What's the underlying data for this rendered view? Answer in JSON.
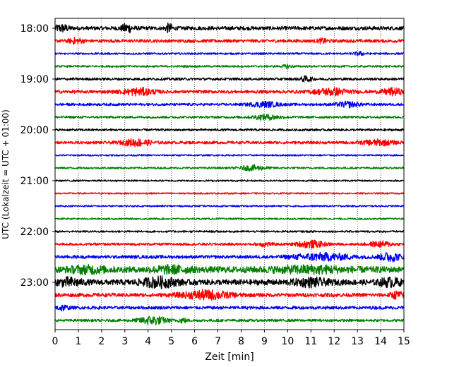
{
  "chart_data": {
    "type": "line",
    "title": "",
    "xlabel": "Zeit  [min]",
    "ylabel": "UTC (Lokalzeit = UTC + 01:00)",
    "xlim": [
      0,
      15
    ],
    "x_ticks": [
      0,
      1,
      2,
      3,
      4,
      5,
      6,
      7,
      8,
      9,
      10,
      11,
      12,
      13,
      14,
      15
    ],
    "y_tick_labels": [
      "18:00",
      "19:00",
      "20:00",
      "21:00",
      "22:00",
      "23:00"
    ],
    "trace_interval_min": 15,
    "start_time": "18:00",
    "grid": "vertical dotted at each minute",
    "color_cycle": [
      "#000000",
      "#ff0000",
      "#0000ff",
      "#008000"
    ],
    "traces": [
      {
        "start": "18:00",
        "amplitude": 0.12,
        "bursts": [
          {
            "t": 0.3,
            "w": 0.6,
            "a": 0.2
          },
          {
            "t": 3.1,
            "w": 0.5,
            "a": 0.25
          },
          {
            "t": 4.9,
            "w": 0.3,
            "a": 0.25
          }
        ]
      },
      {
        "start": "18:15",
        "amplitude": 0.1,
        "bursts": [
          {
            "t": 0.9,
            "w": 0.6,
            "a": 0.15
          },
          {
            "t": 11.5,
            "w": 0.4,
            "a": 0.12
          }
        ]
      },
      {
        "start": "18:30",
        "amplitude": 0.06,
        "bursts": [
          {
            "t": 13.1,
            "w": 0.5,
            "a": 0.1
          }
        ]
      },
      {
        "start": "18:45",
        "amplitude": 0.06,
        "bursts": [
          {
            "t": 10.0,
            "w": 0.4,
            "a": 0.1
          }
        ]
      },
      {
        "start": "19:00",
        "amplitude": 0.08,
        "bursts": [
          {
            "t": 10.8,
            "w": 0.5,
            "a": 0.15
          }
        ]
      },
      {
        "start": "19:15",
        "amplitude": 0.1,
        "bursts": [
          {
            "t": 3.6,
            "w": 1.3,
            "a": 0.2
          },
          {
            "t": 11.9,
            "w": 1.4,
            "a": 0.2
          },
          {
            "t": 14.5,
            "w": 0.8,
            "a": 0.2
          }
        ]
      },
      {
        "start": "19:30",
        "amplitude": 0.08,
        "bursts": [
          {
            "t": 9.0,
            "w": 1.2,
            "a": 0.15
          },
          {
            "t": 12.6,
            "w": 1.0,
            "a": 0.15
          }
        ]
      },
      {
        "start": "19:45",
        "amplitude": 0.07,
        "bursts": [
          {
            "t": 9.1,
            "w": 1.2,
            "a": 0.15
          }
        ]
      },
      {
        "start": "20:00",
        "amplitude": 0.07,
        "bursts": []
      },
      {
        "start": "20:15",
        "amplitude": 0.09,
        "bursts": [
          {
            "t": 3.5,
            "w": 1.2,
            "a": 0.2
          },
          {
            "t": 13.9,
            "w": 1.4,
            "a": 0.15
          }
        ]
      },
      {
        "start": "20:30",
        "amplitude": 0.05,
        "bursts": []
      },
      {
        "start": "20:45",
        "amplitude": 0.06,
        "bursts": [
          {
            "t": 8.5,
            "w": 1.1,
            "a": 0.15
          }
        ]
      },
      {
        "start": "21:00",
        "amplitude": 0.05,
        "bursts": []
      },
      {
        "start": "21:15",
        "amplitude": 0.05,
        "bursts": []
      },
      {
        "start": "21:30",
        "amplitude": 0.05,
        "bursts": []
      },
      {
        "start": "21:45",
        "amplitude": 0.05,
        "bursts": []
      },
      {
        "start": "22:00",
        "amplitude": 0.06,
        "bursts": []
      },
      {
        "start": "22:15",
        "amplitude": 0.08,
        "bursts": [
          {
            "t": 9.0,
            "w": 0.6,
            "a": 0.12
          },
          {
            "t": 11.0,
            "w": 1.2,
            "a": 0.2
          },
          {
            "t": 14.0,
            "w": 1.0,
            "a": 0.15
          }
        ]
      },
      {
        "start": "22:30",
        "amplitude": 0.1,
        "bursts": [
          {
            "t": 11.5,
            "w": 2.5,
            "a": 0.2
          },
          {
            "t": 14.4,
            "w": 0.9,
            "a": 0.25
          }
        ]
      },
      {
        "start": "22:45",
        "amplitude": 0.2,
        "bursts": [
          {
            "t": 1.4,
            "w": 1.5,
            "a": 0.15
          },
          {
            "t": 5.0,
            "w": 1.5,
            "a": 0.15
          },
          {
            "t": 11.0,
            "w": 3.0,
            "a": 0.15
          }
        ]
      },
      {
        "start": "23:00",
        "amplitude": 0.18,
        "bursts": [
          {
            "t": 0.6,
            "w": 1.0,
            "a": 0.2
          },
          {
            "t": 4.5,
            "w": 1.5,
            "a": 0.25
          },
          {
            "t": 11.0,
            "w": 1.4,
            "a": 0.2
          },
          {
            "t": 14.4,
            "w": 0.9,
            "a": 0.2
          }
        ]
      },
      {
        "start": "23:15",
        "amplitude": 0.12,
        "bursts": [
          {
            "t": 6.5,
            "w": 2.0,
            "a": 0.25
          },
          {
            "t": 14.7,
            "w": 0.5,
            "a": 0.2
          }
        ]
      },
      {
        "start": "23:30",
        "amplitude": 0.1,
        "bursts": [
          {
            "t": 0.3,
            "w": 0.5,
            "a": 0.15
          }
        ]
      },
      {
        "start": "23:45",
        "amplitude": 0.08,
        "bursts": [
          {
            "t": 4.2,
            "w": 1.2,
            "a": 0.25
          },
          {
            "t": 5.5,
            "w": 0.3,
            "a": 0.15
          }
        ]
      }
    ]
  }
}
